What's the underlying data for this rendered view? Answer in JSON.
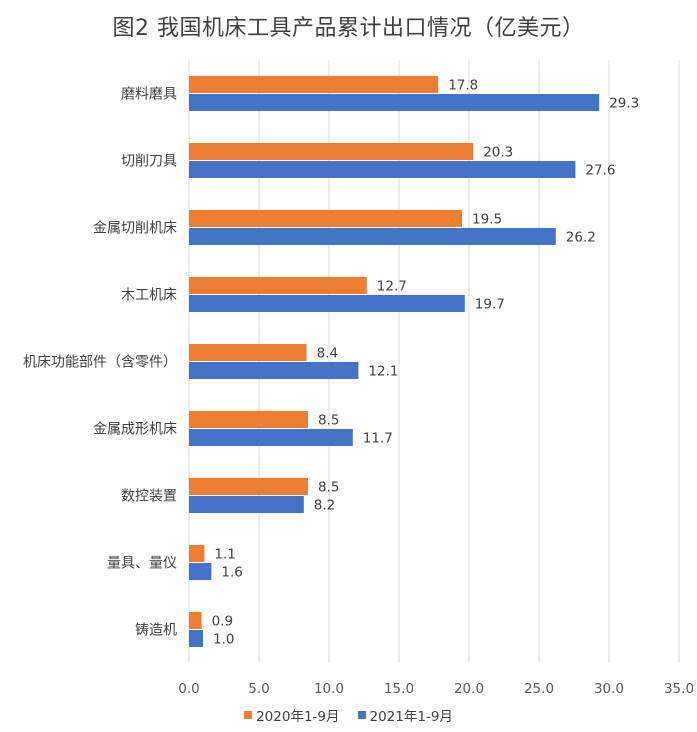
{
  "chart_data": {
    "type": "bar",
    "orientation": "horizontal",
    "title": "图2 我国机床工具产品累计出口情况（亿美元）",
    "categories": [
      "磨料磨具",
      "切削刀具",
      "金属切削机床",
      "木工机床",
      "机床功能部件（含零件）",
      "金属成形机床",
      "数控装置",
      "量具、量仪",
      "铸造机"
    ],
    "series": [
      {
        "name": "2020年1-9月",
        "color": "#ED7D31",
        "values": [
          17.8,
          20.3,
          19.5,
          12.7,
          8.4,
          8.5,
          8.5,
          1.1,
          0.9
        ]
      },
      {
        "name": "2021年1-9月",
        "color": "#4472C4",
        "values": [
          29.3,
          27.6,
          26.2,
          19.7,
          12.1,
          11.7,
          8.2,
          1.6,
          1.0
        ]
      }
    ],
    "xlim": [
      0,
      35
    ],
    "xticks": [
      "0.0",
      "5.0",
      "10.0",
      "15.0",
      "20.0",
      "25.0",
      "30.0",
      "35.0"
    ],
    "grid": "vertical",
    "legend_position": "bottom"
  }
}
